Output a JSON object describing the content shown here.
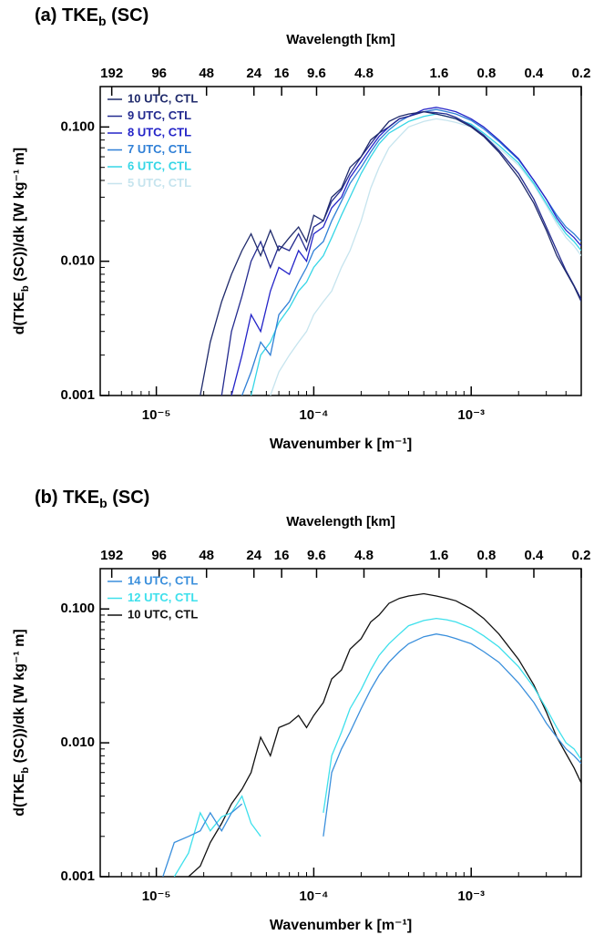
{
  "chart_data": [
    {
      "type": "line",
      "title": [
        "(a) TKE",
        "b",
        " (SC)"
      ],
      "xlabel": "Wavenumber k [m⁻¹]",
      "ylabel": [
        "d(TKE",
        "b",
        " (SC))/dk [W kg⁻¹ m]"
      ],
      "x2label": "Wavelength [km]",
      "xscale": "log",
      "yscale": "log",
      "legend": "upper left",
      "xlim": [
        4.4e-06,
        0.005
      ],
      "ylim": [
        0.001,
        0.2
      ],
      "xticks": [
        {
          "value": 1e-05,
          "label": "10⁻⁵"
        },
        {
          "value": 0.0001,
          "label": "10⁻⁴"
        },
        {
          "value": 0.001,
          "label": "10⁻³"
        }
      ],
      "yticks": [
        {
          "value": 0.001,
          "label": "0.001"
        },
        {
          "value": 0.01,
          "label": "0.010"
        },
        {
          "value": 0.1,
          "label": "0.100"
        }
      ],
      "x2ticks": [
        192,
        96,
        48,
        24,
        16,
        9.6,
        4.8,
        1.6,
        0.8,
        0.4,
        0.2
      ],
      "x": [
        1.1e-05,
        1.3e-05,
        1.6e-05,
        1.9e-05,
        2.2e-05,
        2.6e-05,
        3e-05,
        3.5e-05,
        4e-05,
        4.6e-05,
        5.3e-05,
        6e-05,
        7e-05,
        8e-05,
        9e-05,
        0.0001,
        0.000115,
        0.00013,
        0.00015,
        0.00017,
        0.0002,
        0.00023,
        0.00026,
        0.0003,
        0.00035,
        0.0004,
        0.0005,
        0.0006,
        0.0007,
        0.0008,
        0.001,
        0.0012,
        0.0015,
        0.002,
        0.0025,
        0.003,
        0.0035,
        0.004,
        0.0045,
        0.005
      ],
      "series": [
        {
          "name": "10 UTC, CTL",
          "color": "#1f2a6b",
          "values": [
            null,
            null,
            null,
            0.001,
            0.0025,
            0.005,
            0.008,
            0.012,
            0.016,
            0.011,
            0.017,
            0.012,
            0.015,
            0.018,
            0.014,
            0.022,
            0.02,
            0.03,
            0.035,
            0.05,
            0.06,
            0.08,
            0.09,
            0.11,
            0.12,
            0.125,
            0.13,
            0.125,
            0.12,
            0.115,
            0.1,
            0.085,
            0.065,
            0.042,
            0.027,
            0.017,
            0.011,
            0.0083,
            0.0065,
            0.005
          ]
        },
        {
          "name": "9 UTC, CTL",
          "color": "#232a8f",
          "values": [
            null,
            null,
            null,
            null,
            null,
            0.001,
            0.003,
            0.0055,
            0.01,
            0.014,
            0.009,
            0.013,
            0.012,
            0.016,
            0.012,
            0.018,
            0.02,
            0.028,
            0.034,
            0.045,
            0.06,
            0.075,
            0.09,
            0.1,
            0.115,
            0.12,
            0.13,
            0.128,
            0.125,
            0.118,
            0.102,
            0.087,
            0.067,
            0.045,
            0.029,
            0.018,
            0.012,
            0.0085,
            0.0066,
            0.0052
          ]
        },
        {
          "name": "8 UTC, CTL",
          "color": "#2424c8",
          "values": [
            null,
            null,
            null,
            null,
            null,
            null,
            0.001,
            0.002,
            0.004,
            0.003,
            0.006,
            0.009,
            0.008,
            0.012,
            0.01,
            0.016,
            0.018,
            0.025,
            0.03,
            0.042,
            0.055,
            0.07,
            0.085,
            0.1,
            0.115,
            0.12,
            0.135,
            0.14,
            0.135,
            0.13,
            0.115,
            0.1,
            0.08,
            0.058,
            0.04,
            0.029,
            0.021,
            0.017,
            0.015,
            0.013
          ]
        },
        {
          "name": "7 UTC, CTL",
          "color": "#2f7fd6",
          "values": [
            null,
            null,
            null,
            null,
            null,
            null,
            null,
            0.001,
            0.0015,
            0.0025,
            0.002,
            0.004,
            0.005,
            0.007,
            0.009,
            0.012,
            0.014,
            0.02,
            0.028,
            0.038,
            0.05,
            0.065,
            0.08,
            0.095,
            0.11,
            0.12,
            0.13,
            0.135,
            0.13,
            0.125,
            0.112,
            0.097,
            0.078,
            0.057,
            0.04,
            0.029,
            0.022,
            0.018,
            0.016,
            0.014
          ]
        },
        {
          "name": "6 UTC, CTL",
          "color": "#35d6e6",
          "values": [
            null,
            null,
            null,
            null,
            null,
            null,
            null,
            null,
            0.001,
            0.002,
            0.0025,
            0.0035,
            0.0045,
            0.006,
            0.007,
            0.009,
            0.011,
            0.015,
            0.022,
            0.03,
            0.045,
            0.06,
            0.075,
            0.09,
            0.1,
            0.11,
            0.12,
            0.125,
            0.12,
            0.115,
            0.105,
            0.09,
            0.073,
            0.054,
            0.038,
            0.027,
            0.02,
            0.016,
            0.014,
            0.012
          ]
        },
        {
          "name": "5 UTC, CTL",
          "color": "#c6e4ee",
          "values": [
            null,
            null,
            null,
            null,
            null,
            null,
            null,
            null,
            null,
            null,
            0.001,
            0.0015,
            0.002,
            0.0025,
            0.003,
            0.004,
            0.005,
            0.006,
            0.009,
            0.012,
            0.02,
            0.035,
            0.05,
            0.07,
            0.085,
            0.1,
            0.11,
            0.115,
            0.112,
            0.108,
            0.1,
            0.087,
            0.07,
            0.052,
            0.037,
            0.026,
            0.019,
            0.015,
            0.013,
            0.011
          ]
        }
      ]
    },
    {
      "type": "line",
      "title": [
        "(b) TKE",
        "b",
        " (SC)"
      ],
      "xlabel": "Wavenumber k [m⁻¹]",
      "ylabel": [
        "d(TKE",
        "b",
        " (SC))/dk [W kg⁻¹ m]"
      ],
      "x2label": "Wavelength [km]",
      "xscale": "log",
      "yscale": "log",
      "legend": "upper left",
      "xlim": [
        4.4e-06,
        0.005
      ],
      "ylim": [
        0.001,
        0.2
      ],
      "xticks": [
        {
          "value": 1e-05,
          "label": "10⁻⁵"
        },
        {
          "value": 0.0001,
          "label": "10⁻⁴"
        },
        {
          "value": 0.001,
          "label": "10⁻³"
        }
      ],
      "yticks": [
        {
          "value": 0.001,
          "label": "0.001"
        },
        {
          "value": 0.01,
          "label": "0.010"
        },
        {
          "value": 0.1,
          "label": "0.100"
        }
      ],
      "x2ticks": [
        192,
        96,
        48,
        24,
        16,
        9.6,
        4.8,
        1.6,
        0.8,
        0.4,
        0.2
      ],
      "x": [
        1.1e-05,
        1.3e-05,
        1.6e-05,
        1.9e-05,
        2.2e-05,
        2.6e-05,
        3e-05,
        3.5e-05,
        4e-05,
        4.6e-05,
        5.3e-05,
        6e-05,
        7e-05,
        8e-05,
        9e-05,
        0.0001,
        0.000115,
        0.00013,
        0.00015,
        0.00017,
        0.0002,
        0.00023,
        0.00026,
        0.0003,
        0.00035,
        0.0004,
        0.0005,
        0.0006,
        0.0007,
        0.0008,
        0.001,
        0.0012,
        0.0015,
        0.002,
        0.0025,
        0.003,
        0.0035,
        0.004,
        0.0045,
        0.005
      ],
      "series": [
        {
          "name": "14 UTC, CTL",
          "color": "#3a8fdc",
          "values": [
            0.001,
            0.0018,
            0.002,
            0.0022,
            0.003,
            0.0022,
            0.003,
            0.0035,
            null,
            null,
            null,
            null,
            null,
            null,
            null,
            null,
            0.002,
            0.006,
            0.009,
            0.012,
            0.018,
            0.025,
            0.032,
            0.04,
            0.048,
            0.055,
            0.062,
            0.065,
            0.063,
            0.06,
            0.055,
            0.048,
            0.04,
            0.028,
            0.02,
            0.014,
            0.011,
            0.009,
            0.008,
            0.007
          ]
        },
        {
          "name": "12 UTC, CTL",
          "color": "#3ee0ec",
          "values": [
            null,
            0.001,
            0.0015,
            0.003,
            0.0022,
            0.0028,
            0.003,
            0.004,
            0.0025,
            0.002,
            null,
            null,
            null,
            null,
            null,
            null,
            0.003,
            0.008,
            0.012,
            0.018,
            0.025,
            0.035,
            0.045,
            0.055,
            0.065,
            0.075,
            0.082,
            0.085,
            0.083,
            0.08,
            0.072,
            0.063,
            0.052,
            0.037,
            0.026,
            0.018,
            0.013,
            0.01,
            0.009,
            0.0075
          ]
        },
        {
          "name": "10 UTC, CTL",
          "color": "#111111",
          "values": [
            null,
            null,
            0.001,
            0.0012,
            0.0018,
            0.0025,
            0.0035,
            0.0045,
            0.006,
            0.011,
            0.008,
            0.013,
            0.014,
            0.016,
            0.013,
            0.016,
            0.02,
            0.03,
            0.035,
            0.05,
            0.06,
            0.08,
            0.09,
            0.11,
            0.12,
            0.125,
            0.13,
            0.125,
            0.12,
            0.115,
            0.1,
            0.085,
            0.065,
            0.042,
            0.027,
            0.017,
            0.011,
            0.0083,
            0.0065,
            0.005
          ]
        }
      ]
    }
  ]
}
